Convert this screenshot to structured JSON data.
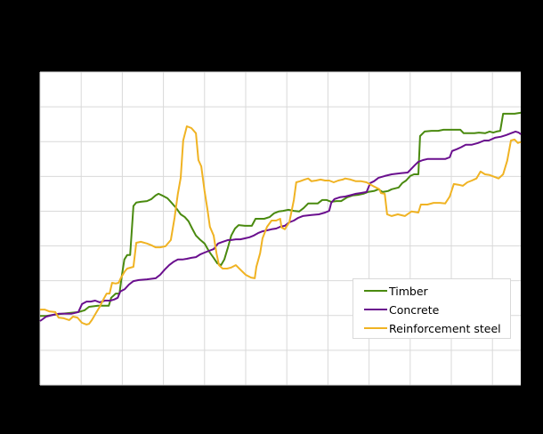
{
  "chart_data": {
    "type": "line",
    "title": "",
    "xlabel": "",
    "ylabel": "",
    "note": "Axis tick labels not legible (rendered on black background). x in years from chart start (gridline spacing), y in gridline units (0 = bottom axis, 9 = top).",
    "xlim": [
      0,
      11.7
    ],
    "ylim": [
      0,
      9
    ],
    "x_gridlines": 12,
    "y_gridlines": 9,
    "grid": true,
    "legend_position": "lower right",
    "series": [
      {
        "name": "Timber",
        "color": "#4a8a0f",
        "points": [
          [
            0,
            1.99
          ],
          [
            0.15,
            1.99
          ],
          [
            0.32,
            2.02
          ],
          [
            0.54,
            2.05
          ],
          [
            0.93,
            2.1
          ],
          [
            1.08,
            2.15
          ],
          [
            1.19,
            2.25
          ],
          [
            1.41,
            2.28
          ],
          [
            1.67,
            2.28
          ],
          [
            1.73,
            2.51
          ],
          [
            1.84,
            2.63
          ],
          [
            1.93,
            2.63
          ],
          [
            1.99,
            3.15
          ],
          [
            2.05,
            3.61
          ],
          [
            2.12,
            3.74
          ],
          [
            2.19,
            3.74
          ],
          [
            2.27,
            5.15
          ],
          [
            2.34,
            5.25
          ],
          [
            2.45,
            5.27
          ],
          [
            2.6,
            5.29
          ],
          [
            2.71,
            5.35
          ],
          [
            2.81,
            5.45
          ],
          [
            2.88,
            5.5
          ],
          [
            2.97,
            5.45
          ],
          [
            3.1,
            5.37
          ],
          [
            3.2,
            5.24
          ],
          [
            3.31,
            5.09
          ],
          [
            3.42,
            4.91
          ],
          [
            3.52,
            4.83
          ],
          [
            3.61,
            4.71
          ],
          [
            3.7,
            4.5
          ],
          [
            3.79,
            4.3
          ],
          [
            3.9,
            4.17
          ],
          [
            4.0,
            4.07
          ],
          [
            4.11,
            3.84
          ],
          [
            4.22,
            3.66
          ],
          [
            4.31,
            3.5
          ],
          [
            4.4,
            3.45
          ],
          [
            4.48,
            3.61
          ],
          [
            4.57,
            3.96
          ],
          [
            4.65,
            4.3
          ],
          [
            4.74,
            4.5
          ],
          [
            4.83,
            4.6
          ],
          [
            4.98,
            4.58
          ],
          [
            5.15,
            4.58
          ],
          [
            5.24,
            4.78
          ],
          [
            5.35,
            4.78
          ],
          [
            5.45,
            4.78
          ],
          [
            5.58,
            4.83
          ],
          [
            5.69,
            4.94
          ],
          [
            5.8,
            4.99
          ],
          [
            5.91,
            5.01
          ],
          [
            6.04,
            5.04
          ],
          [
            6.17,
            5.01
          ],
          [
            6.3,
            4.99
          ],
          [
            6.41,
            5.09
          ],
          [
            6.52,
            5.22
          ],
          [
            6.65,
            5.22
          ],
          [
            6.75,
            5.22
          ],
          [
            6.86,
            5.32
          ],
          [
            6.97,
            5.32
          ],
          [
            7.08,
            5.27
          ],
          [
            7.21,
            5.29
          ],
          [
            7.32,
            5.29
          ],
          [
            7.47,
            5.4
          ],
          [
            7.6,
            5.45
          ],
          [
            7.73,
            5.47
          ],
          [
            7.86,
            5.5
          ],
          [
            7.97,
            5.55
          ],
          [
            8.12,
            5.58
          ],
          [
            8.23,
            5.63
          ],
          [
            8.33,
            5.55
          ],
          [
            8.46,
            5.58
          ],
          [
            8.55,
            5.63
          ],
          [
            8.72,
            5.68
          ],
          [
            8.81,
            5.81
          ],
          [
            8.9,
            5.88
          ],
          [
            9.0,
            6.01
          ],
          [
            9.09,
            6.06
          ],
          [
            9.2,
            6.06
          ],
          [
            9.24,
            7.16
          ],
          [
            9.35,
            7.29
          ],
          [
            9.52,
            7.31
          ],
          [
            9.68,
            7.31
          ],
          [
            9.81,
            7.34
          ],
          [
            9.96,
            7.34
          ],
          [
            10.11,
            7.34
          ],
          [
            10.22,
            7.34
          ],
          [
            10.3,
            7.24
          ],
          [
            10.43,
            7.24
          ],
          [
            10.56,
            7.24
          ],
          [
            10.67,
            7.26
          ],
          [
            10.82,
            7.24
          ],
          [
            10.93,
            7.29
          ],
          [
            11.02,
            7.26
          ],
          [
            11.1,
            7.29
          ],
          [
            11.19,
            7.31
          ],
          [
            11.26,
            7.8
          ],
          [
            11.36,
            7.8
          ],
          [
            11.54,
            7.8
          ],
          [
            11.69,
            7.83
          ]
        ]
      },
      {
        "name": "Concrete",
        "color": "#6a0f8e",
        "points": [
          [
            0,
            1.84
          ],
          [
            0.15,
            1.97
          ],
          [
            0.32,
            2.02
          ],
          [
            0.45,
            2.05
          ],
          [
            0.65,
            2.05
          ],
          [
            0.76,
            2.05
          ],
          [
            0.93,
            2.1
          ],
          [
            1.02,
            2.33
          ],
          [
            1.13,
            2.4
          ],
          [
            1.23,
            2.4
          ],
          [
            1.34,
            2.43
          ],
          [
            1.45,
            2.38
          ],
          [
            1.58,
            2.43
          ],
          [
            1.71,
            2.43
          ],
          [
            1.8,
            2.46
          ],
          [
            1.89,
            2.51
          ],
          [
            1.95,
            2.69
          ],
          [
            2.06,
            2.76
          ],
          [
            2.16,
            2.89
          ],
          [
            2.27,
            2.99
          ],
          [
            2.4,
            3.02
          ],
          [
            2.6,
            3.04
          ],
          [
            2.81,
            3.07
          ],
          [
            2.92,
            3.17
          ],
          [
            3.03,
            3.32
          ],
          [
            3.14,
            3.45
          ],
          [
            3.25,
            3.55
          ],
          [
            3.35,
            3.61
          ],
          [
            3.46,
            3.61
          ],
          [
            3.57,
            3.63
          ],
          [
            3.68,
            3.66
          ],
          [
            3.79,
            3.68
          ],
          [
            3.9,
            3.76
          ],
          [
            4.0,
            3.81
          ],
          [
            4.11,
            3.86
          ],
          [
            4.22,
            3.91
          ],
          [
            4.33,
            4.07
          ],
          [
            4.44,
            4.12
          ],
          [
            4.57,
            4.17
          ],
          [
            4.65,
            4.17
          ],
          [
            4.76,
            4.19
          ],
          [
            4.87,
            4.19
          ],
          [
            4.98,
            4.22
          ],
          [
            5.09,
            4.25
          ],
          [
            5.2,
            4.3
          ],
          [
            5.3,
            4.37
          ],
          [
            5.41,
            4.42
          ],
          [
            5.52,
            4.45
          ],
          [
            5.63,
            4.48
          ],
          [
            5.74,
            4.5
          ],
          [
            5.84,
            4.55
          ],
          [
            5.95,
            4.58
          ],
          [
            6.06,
            4.68
          ],
          [
            6.17,
            4.73
          ],
          [
            6.28,
            4.81
          ],
          [
            6.39,
            4.86
          ],
          [
            6.6,
            4.89
          ],
          [
            6.78,
            4.91
          ],
          [
            6.93,
            4.96
          ],
          [
            7.03,
            5.01
          ],
          [
            7.08,
            5.24
          ],
          [
            7.16,
            5.35
          ],
          [
            7.29,
            5.4
          ],
          [
            7.42,
            5.42
          ],
          [
            7.58,
            5.47
          ],
          [
            7.68,
            5.5
          ],
          [
            7.79,
            5.52
          ],
          [
            7.94,
            5.55
          ],
          [
            8.03,
            5.81
          ],
          [
            8.12,
            5.86
          ],
          [
            8.23,
            5.96
          ],
          [
            8.38,
            6.01
          ],
          [
            8.55,
            6.06
          ],
          [
            8.77,
            6.09
          ],
          [
            8.94,
            6.11
          ],
          [
            9.03,
            6.22
          ],
          [
            9.11,
            6.32
          ],
          [
            9.2,
            6.42
          ],
          [
            9.31,
            6.47
          ],
          [
            9.42,
            6.5
          ],
          [
            9.63,
            6.5
          ],
          [
            9.85,
            6.5
          ],
          [
            9.96,
            6.55
          ],
          [
            10.02,
            6.73
          ],
          [
            10.13,
            6.78
          ],
          [
            10.24,
            6.84
          ],
          [
            10.35,
            6.91
          ],
          [
            10.5,
            6.91
          ],
          [
            10.65,
            6.96
          ],
          [
            10.8,
            7.03
          ],
          [
            10.91,
            7.03
          ],
          [
            11.06,
            7.11
          ],
          [
            11.21,
            7.14
          ],
          [
            11.34,
            7.19
          ],
          [
            11.45,
            7.24
          ],
          [
            11.56,
            7.29
          ],
          [
            11.64,
            7.26
          ],
          [
            11.69,
            7.21
          ]
        ]
      },
      {
        "name": "Reinforcement steel",
        "color": "#f0b323",
        "points": [
          [
            0,
            2.17
          ],
          [
            0.11,
            2.17
          ],
          [
            0.22,
            2.12
          ],
          [
            0.37,
            2.1
          ],
          [
            0.45,
            1.94
          ],
          [
            0.58,
            1.92
          ],
          [
            0.71,
            1.87
          ],
          [
            0.8,
            1.97
          ],
          [
            0.91,
            1.94
          ],
          [
            1.02,
            1.79
          ],
          [
            1.13,
            1.74
          ],
          [
            1.19,
            1.76
          ],
          [
            1.26,
            1.87
          ],
          [
            1.36,
            2.07
          ],
          [
            1.45,
            2.25
          ],
          [
            1.54,
            2.46
          ],
          [
            1.62,
            2.63
          ],
          [
            1.69,
            2.63
          ],
          [
            1.75,
            2.94
          ],
          [
            1.84,
            2.92
          ],
          [
            1.91,
            2.94
          ],
          [
            1.97,
            3.09
          ],
          [
            2.06,
            3.27
          ],
          [
            2.12,
            3.35
          ],
          [
            2.27,
            3.4
          ],
          [
            2.34,
            4.09
          ],
          [
            2.45,
            4.12
          ],
          [
            2.6,
            4.07
          ],
          [
            2.71,
            4.02
          ],
          [
            2.81,
            3.96
          ],
          [
            2.92,
            3.96
          ],
          [
            3.05,
            3.99
          ],
          [
            3.18,
            4.17
          ],
          [
            3.27,
            4.81
          ],
          [
            3.35,
            5.5
          ],
          [
            3.42,
            5.96
          ],
          [
            3.48,
            7.03
          ],
          [
            3.57,
            7.44
          ],
          [
            3.68,
            7.39
          ],
          [
            3.79,
            7.24
          ],
          [
            3.85,
            6.47
          ],
          [
            3.92,
            6.29
          ],
          [
            4.0,
            5.58
          ],
          [
            4.07,
            5.06
          ],
          [
            4.13,
            4.55
          ],
          [
            4.22,
            4.3
          ],
          [
            4.29,
            3.79
          ],
          [
            4.35,
            3.45
          ],
          [
            4.44,
            3.35
          ],
          [
            4.55,
            3.35
          ],
          [
            4.65,
            3.38
          ],
          [
            4.76,
            3.45
          ],
          [
            4.87,
            3.32
          ],
          [
            5.0,
            3.17
          ],
          [
            5.13,
            3.09
          ],
          [
            5.22,
            3.07
          ],
          [
            5.26,
            3.4
          ],
          [
            5.35,
            3.79
          ],
          [
            5.41,
            4.22
          ],
          [
            5.52,
            4.55
          ],
          [
            5.63,
            4.73
          ],
          [
            5.74,
            4.73
          ],
          [
            5.84,
            4.78
          ],
          [
            5.87,
            4.53
          ],
          [
            5.95,
            4.48
          ],
          [
            6.06,
            4.68
          ],
          [
            6.17,
            5.32
          ],
          [
            6.23,
            5.83
          ],
          [
            6.32,
            5.86
          ],
          [
            6.43,
            5.91
          ],
          [
            6.52,
            5.94
          ],
          [
            6.6,
            5.86
          ],
          [
            6.71,
            5.88
          ],
          [
            6.82,
            5.91
          ],
          [
            6.93,
            5.88
          ],
          [
            7.03,
            5.88
          ],
          [
            7.14,
            5.83
          ],
          [
            7.25,
            5.88
          ],
          [
            7.36,
            5.91
          ],
          [
            7.42,
            5.94
          ],
          [
            7.55,
            5.91
          ],
          [
            7.68,
            5.86
          ],
          [
            7.81,
            5.86
          ],
          [
            7.94,
            5.83
          ],
          [
            8.12,
            5.71
          ],
          [
            8.25,
            5.63
          ],
          [
            8.29,
            5.52
          ],
          [
            8.38,
            5.5
          ],
          [
            8.44,
            4.91
          ],
          [
            8.55,
            4.86
          ],
          [
            8.7,
            4.91
          ],
          [
            8.87,
            4.86
          ],
          [
            9.03,
            4.99
          ],
          [
            9.2,
            4.96
          ],
          [
            9.26,
            5.19
          ],
          [
            9.42,
            5.19
          ],
          [
            9.57,
            5.24
          ],
          [
            9.72,
            5.24
          ],
          [
            9.85,
            5.22
          ],
          [
            9.96,
            5.42
          ],
          [
            10.06,
            5.78
          ],
          [
            10.17,
            5.76
          ],
          [
            10.28,
            5.73
          ],
          [
            10.39,
            5.83
          ],
          [
            10.5,
            5.88
          ],
          [
            10.61,
            5.94
          ],
          [
            10.71,
            6.14
          ],
          [
            10.82,
            6.06
          ],
          [
            10.93,
            6.04
          ],
          [
            11.04,
            5.99
          ],
          [
            11.15,
            5.94
          ],
          [
            11.26,
            6.06
          ],
          [
            11.36,
            6.45
          ],
          [
            11.45,
            7.03
          ],
          [
            11.54,
            7.06
          ],
          [
            11.62,
            6.96
          ],
          [
            11.69,
            6.99
          ]
        ]
      }
    ]
  },
  "legend": {
    "items": [
      {
        "label": "Timber",
        "color": "#4a8a0f"
      },
      {
        "label": "Concrete",
        "color": "#6a0f8e"
      },
      {
        "label": "Reinforcement steel",
        "color": "#f0b323"
      }
    ]
  }
}
